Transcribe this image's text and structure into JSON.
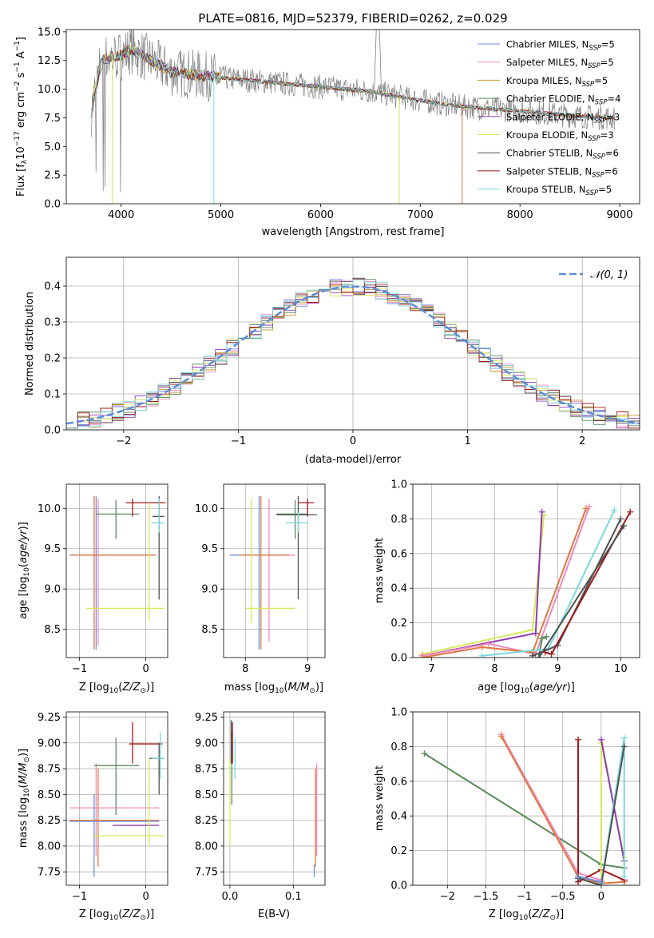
{
  "colors": {
    "Chabrier MILES": "#6b8fe0",
    "Salpeter MILES": "#f08ac0",
    "Kroupa MILES": "#c8962e",
    "Chabrier ELODIE": "#5a8a5a",
    "Salpeter ELODIE": "#8e3bb0",
    "Kroupa ELODIE": "#d8e85a",
    "Chabrier STELIB": "#505050",
    "Salpeter STELIB": "#a01818",
    "Kroupa STELIB": "#7ad8e0",
    "data": "#808080",
    "orange": "#e07840",
    "normal": "#5a8ed8"
  },
  "chart_data": [
    {
      "type": "line",
      "title": "PLATE=0816, MJD=52379, FIBERID=0262, z=0.029",
      "xlabel": "wavelength [Angstrom, rest frame]",
      "ylabel": "Flux [fλ10⁻¹⁷ erg cm⁻² s⁻¹ A⁻¹]",
      "xlim": [
        3450,
        9200
      ],
      "ylim": [
        0,
        15.2
      ],
      "xticks": [
        4000,
        5000,
        6000,
        7000,
        8000,
        9000
      ],
      "yticks": [
        0.0,
        2.5,
        5.0,
        7.5,
        10.0,
        12.5,
        15.0
      ],
      "legend_position": "top-right",
      "legend": [
        {
          "name": "Chabrier MILES",
          "sub": "5"
        },
        {
          "name": "Salpeter MILES",
          "sub": "5"
        },
        {
          "name": "Kroupa MILES",
          "sub": "5"
        },
        {
          "name": "Chabrier ELODIE",
          "sub": "4"
        },
        {
          "name": "Salpeter ELODIE",
          "sub": "3"
        },
        {
          "name": "Kroupa ELODIE",
          "sub": "3"
        },
        {
          "name": "Chabrier STELIB",
          "sub": "6"
        },
        {
          "name": "Salpeter STELIB",
          "sub": "6"
        },
        {
          "name": "Kroupa STELIB",
          "sub": "5"
        }
      ],
      "model_continuum": {
        "x": [
          3700,
          3800,
          3900,
          4000,
          4100,
          4300,
          4500,
          4800,
          5000,
          5500,
          6000,
          6500,
          7000,
          7400,
          8000,
          8500,
          8900
        ],
        "y": [
          8.0,
          12.5,
          12.8,
          12.9,
          13.5,
          12.5,
          11.5,
          11.2,
          11.0,
          10.6,
          10.2,
          9.8,
          9.0,
          8.5,
          8.1,
          7.7,
          7.5
        ]
      }
    },
    {
      "type": "line",
      "xlabel": "(data-model)/error",
      "ylabel": "Normed distribution",
      "xlim": [
        -2.5,
        2.5
      ],
      "ylim": [
        0,
        0.48
      ],
      "xticks": [
        -2,
        -1,
        0,
        1,
        2
      ],
      "yticks": [
        0.0,
        0.1,
        0.2,
        0.3,
        0.4
      ],
      "legend_position": "top-right",
      "legend_label": "𝒩(0, 1)"
    },
    {
      "type": "scatter",
      "xlabel": "Z [log10(Z/Z⊙)]",
      "ylabel": "age  [log10(age/yr)]",
      "xlim": [
        -1.2,
        0.33
      ],
      "ylim": [
        8.15,
        10.3
      ],
      "xticks": [
        -1,
        0
      ],
      "yticks": [
        8.5,
        9.0,
        9.5,
        10.0
      ]
    },
    {
      "type": "scatter",
      "xlabel": "mass [log10(M/M⊙)]",
      "xlim": [
        7.65,
        9.28
      ],
      "ylim": [
        8.15,
        10.3
      ],
      "xticks": [
        8,
        9
      ],
      "yticks": [
        8.5,
        9.0,
        9.5,
        10.0
      ]
    },
    {
      "type": "line",
      "xlabel": "age  [log10(age/yr)]",
      "ylabel": "mass weight",
      "xlim": [
        6.7,
        10.3
      ],
      "ylim": [
        0,
        1.0
      ],
      "xticks": [
        7,
        8,
        9,
        10
      ],
      "yticks": [
        0.0,
        0.2,
        0.4,
        0.6,
        0.8,
        1.0
      ]
    },
    {
      "type": "scatter",
      "xlabel": "Z [log10(Z/Z⊙)]",
      "ylabel": "mass [log10(M/M⊙)]",
      "xlim": [
        -1.2,
        0.33
      ],
      "ylim": [
        7.62,
        9.3
      ],
      "xticks": [
        -1,
        0
      ],
      "yticks": [
        7.75,
        8.0,
        8.25,
        8.5,
        8.75,
        9.0,
        9.25
      ]
    },
    {
      "type": "scatter",
      "xlabel": "E(B-V)",
      "xlim": [
        -0.01,
        0.15
      ],
      "ylim": [
        7.62,
        9.3
      ],
      "xticks": [
        0.0,
        0.1
      ],
      "yticks": [
        7.75,
        8.0,
        8.25,
        8.5,
        8.75,
        9.0,
        9.25
      ]
    },
    {
      "type": "line",
      "xlabel": "Z [log10(Z/Z⊙)]",
      "ylabel": "mass weight",
      "xlim": [
        -2.45,
        0.5
      ],
      "ylim": [
        0,
        1.0
      ],
      "xticks": [
        -2.0,
        -1.5,
        -1.0,
        -0.5,
        0.0
      ],
      "yticks": [
        0.0,
        0.2,
        0.4,
        0.6,
        0.8,
        1.0
      ]
    }
  ]
}
